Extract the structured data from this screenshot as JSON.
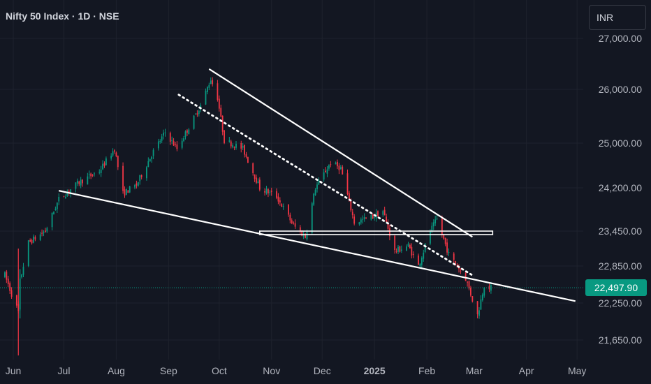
{
  "header": {
    "title": "Nifty 50 Index · 1D · NSE"
  },
  "currency_button": {
    "label": "INR"
  },
  "last_price": {
    "label": "22,497.90",
    "value": 22497.9
  },
  "colors": {
    "background": "#131722",
    "up": "#089981",
    "down": "#f23645",
    "grid": "#1e222d",
    "drawing": "#ffffff",
    "axis_text": "#b2b5be"
  },
  "chart_data": {
    "type": "candlestick",
    "title": "Nifty 50 Index · 1D · NSE",
    "y_ticks": [
      {
        "label": "27,000.00",
        "value": 27000
      },
      {
        "label": "26,000.00",
        "value": 26000
      },
      {
        "label": "25,000.00",
        "value": 25000
      },
      {
        "label": "24,200.00",
        "value": 24200
      },
      {
        "label": "23,450.00",
        "value": 23450
      },
      {
        "label": "22,850.00",
        "value": 22850
      },
      {
        "label": "22,250.00",
        "value": 22250
      },
      {
        "label": "21,650.00",
        "value": 21650
      }
    ],
    "x_ticks": [
      {
        "label": "Jun",
        "date": "2024-06-01"
      },
      {
        "label": "Jul",
        "date": "2024-07-01"
      },
      {
        "label": "Aug",
        "date": "2024-08-01"
      },
      {
        "label": "Sep",
        "date": "2024-09-01"
      },
      {
        "label": "Oct",
        "date": "2024-10-01"
      },
      {
        "label": "Nov",
        "date": "2024-11-01"
      },
      {
        "label": "Dec",
        "date": "2024-12-01"
      },
      {
        "label": "2025",
        "date": "2025-01-01",
        "bold": true
      },
      {
        "label": "Feb",
        "date": "2025-02-01"
      },
      {
        "label": "Mar",
        "date": "2025-03-01"
      },
      {
        "label": "Apr",
        "date": "2025-04-01"
      },
      {
        "label": "May",
        "date": "2025-05-01"
      }
    ],
    "path": [
      {
        "date": "2024-05-27",
        "price": 22700
      },
      {
        "date": "2024-06-04",
        "price": 22100
      },
      {
        "date": "2024-06-05",
        "price": 22600
      },
      {
        "date": "2024-06-10",
        "price": 23250
      },
      {
        "date": "2024-06-20",
        "price": 23450
      },
      {
        "date": "2024-06-28",
        "price": 24000
      },
      {
        "date": "2024-07-10",
        "price": 24300
      },
      {
        "date": "2024-07-22",
        "price": 24500
      },
      {
        "date": "2024-07-31",
        "price": 24900
      },
      {
        "date": "2024-08-05",
        "price": 24100
      },
      {
        "date": "2024-08-13",
        "price": 24250
      },
      {
        "date": "2024-08-22",
        "price": 24800
      },
      {
        "date": "2024-08-30",
        "price": 25200
      },
      {
        "date": "2024-09-06",
        "price": 24900
      },
      {
        "date": "2024-09-14",
        "price": 25350
      },
      {
        "date": "2024-09-20",
        "price": 25700
      },
      {
        "date": "2024-09-26",
        "price": 26200
      },
      {
        "date": "2024-09-30",
        "price": 25850
      },
      {
        "date": "2024-10-04",
        "price": 25050
      },
      {
        "date": "2024-10-15",
        "price": 24900
      },
      {
        "date": "2024-10-25",
        "price": 24200
      },
      {
        "date": "2024-11-04",
        "price": 24050
      },
      {
        "date": "2024-11-14",
        "price": 23550
      },
      {
        "date": "2024-11-21",
        "price": 23350
      },
      {
        "date": "2024-11-27",
        "price": 24200
      },
      {
        "date": "2024-12-06",
        "price": 24650
      },
      {
        "date": "2024-12-12",
        "price": 24550
      },
      {
        "date": "2024-12-20",
        "price": 23600
      },
      {
        "date": "2024-12-31",
        "price": 23700
      },
      {
        "date": "2025-01-06",
        "price": 23800
      },
      {
        "date": "2025-01-13",
        "price": 23100
      },
      {
        "date": "2025-01-21",
        "price": 23200
      },
      {
        "date": "2025-01-27",
        "price": 22850
      },
      {
        "date": "2025-02-03",
        "price": 23450
      },
      {
        "date": "2025-02-07",
        "price": 23650
      },
      {
        "date": "2025-02-14",
        "price": 23050
      },
      {
        "date": "2025-02-24",
        "price": 22650
      },
      {
        "date": "2025-03-03",
        "price": 22050
      },
      {
        "date": "2025-03-07",
        "price": 22550
      },
      {
        "date": "2025-03-11",
        "price": 22497.9
      }
    ],
    "drawings": [
      {
        "kind": "trendline",
        "from": {
          "date": "2024-06-28",
          "price": 24150
        },
        "to": {
          "date": "2025-04-30",
          "price": 22280
        }
      },
      {
        "kind": "trendline",
        "from": {
          "date": "2024-09-25",
          "price": 26400
        },
        "to": {
          "date": "2025-02-28",
          "price": 23350
        }
      },
      {
        "kind": "dotted-trendline",
        "from": {
          "date": "2024-09-07",
          "price": 25900
        },
        "to": {
          "date": "2025-02-28",
          "price": 22700
        }
      },
      {
        "kind": "rectangle",
        "from": {
          "date": "2024-10-25",
          "price": 23450
        },
        "to": {
          "date": "2025-03-12",
          "price": 23390
        }
      }
    ],
    "ylim": [
      21450,
      27350
    ]
  }
}
